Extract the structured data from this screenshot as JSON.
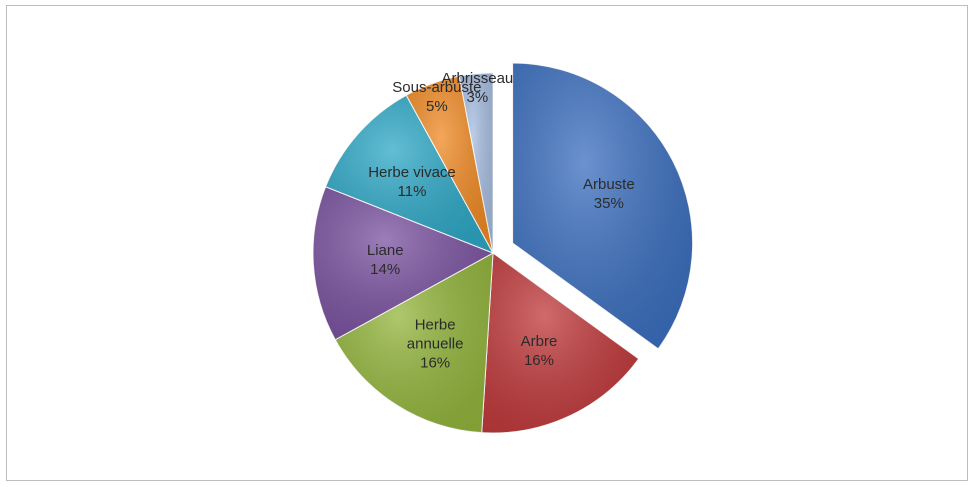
{
  "chart_data": {
    "type": "pie",
    "categories": [
      "Arbuste",
      "Arbre",
      "Herbe annuelle",
      "Liane",
      "Herbe vivace",
      "Sous-arbuste",
      "Arbrisseau"
    ],
    "values": [
      35,
      16,
      16,
      14,
      11,
      5,
      3
    ],
    "value_labels": [
      "35%",
      "16%",
      "16%",
      "14%",
      "11%",
      "5%",
      "3%"
    ],
    "colors": [
      "#3b6fbf",
      "#c0393b",
      "#93b53c",
      "#7a52a0",
      "#2ea8c6",
      "#f08a24",
      "#a6bde0"
    ],
    "exploded": [
      "Arbuste"
    ]
  }
}
